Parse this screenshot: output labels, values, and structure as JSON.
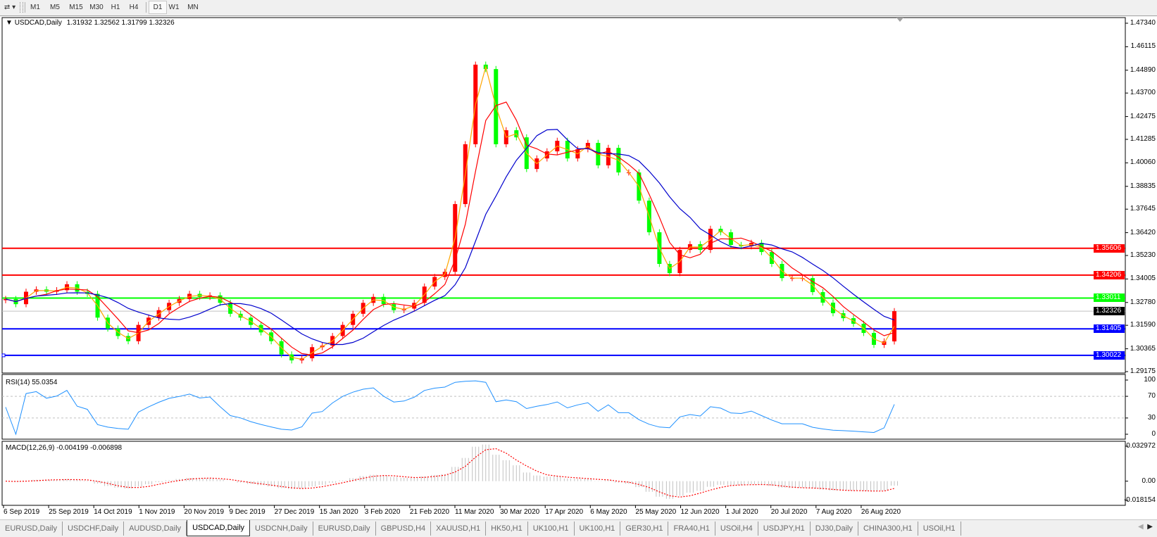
{
  "toolbar": {
    "timeframes": [
      "M1",
      "M5",
      "M15",
      "M30",
      "H1",
      "H4",
      "D1",
      "W1",
      "MN"
    ],
    "active_timeframe": "D1"
  },
  "header": {
    "symbol": "USDCAD,Daily",
    "ohlc": "1.31932 1.32562 1.31799 1.32326"
  },
  "colors": {
    "bull_candle": "#ff0000",
    "bear_candle": "#00ff00",
    "ma_fast": "#ffa500",
    "ma_mid": "#ff0000",
    "ma_slow": "#0000cd",
    "rsi_line": "#1e90ff",
    "macd_hist": "#c0c0c0",
    "macd_signal": "#ff0000"
  },
  "chart_data": [
    {
      "type": "candlestick",
      "title": "USDCAD,Daily",
      "price_ticks": [
        "1.47340",
        "1.46115",
        "1.44890",
        "1.43700",
        "1.42475",
        "1.41285",
        "1.40060",
        "1.38835",
        "1.37645",
        "1.36420",
        "1.35230",
        "1.34005",
        "1.32780",
        "1.31590",
        "1.30365",
        "1.29175"
      ],
      "ylim": [
        1.29175,
        1.4734
      ],
      "time_ticks": [
        "6 Sep 2019",
        "25 Sep 2019",
        "14 Oct 2019",
        "1 Nov 2019",
        "20 Nov 2019",
        "9 Dec 2019",
        "27 Dec 2019",
        "15 Jan 2020",
        "3 Feb 2020",
        "21 Feb 2020",
        "11 Mar 2020",
        "30 Mar 2020",
        "17 Apr 2020",
        "6 May 2020",
        "25 May 2020",
        "12 Jun 2020",
        "1 Jul 2020",
        "20 Jul 2020",
        "7 Aug 2020",
        "26 Aug 2020"
      ],
      "closes": [
        1.3296,
        1.3269,
        1.3334,
        1.3346,
        1.3334,
        1.3342,
        1.3373,
        1.3334,
        1.3323,
        1.3199,
        1.3142,
        1.3103,
        1.3076,
        1.3161,
        1.3199,
        1.3238,
        1.3276,
        1.3296,
        1.3323,
        1.3307,
        1.3315,
        1.3276,
        1.3219,
        1.3199,
        1.3161,
        1.3122,
        1.3076,
        1.3007,
        1.2976,
        1.2987,
        1.3045,
        1.3053,
        1.3103,
        1.3161,
        1.3219,
        1.3276,
        1.3307,
        1.3269,
        1.3238,
        1.3246,
        1.3276,
        1.3361,
        1.3411,
        1.3438,
        1.3791,
        1.4103,
        1.4518,
        1.4495,
        1.4103,
        1.4176,
        1.4139,
        1.3974,
        1.4029,
        1.4066,
        1.4121,
        1.4029,
        1.4077,
        1.411,
        1.3993,
        1.4084,
        1.3956,
        1.3956,
        1.3809,
        1.3644,
        1.3479,
        1.3431,
        1.3552,
        1.3582,
        1.3552,
        1.3662,
        1.3644,
        1.3578,
        1.3571,
        1.3589,
        1.3541,
        1.3479,
        1.3405,
        1.3405,
        1.3405,
        1.3332,
        1.3277,
        1.3222,
        1.3196,
        1.3167,
        1.3119,
        1.3057,
        1.3075,
        1.32326
      ],
      "horizontal_lines": [
        {
          "price": "1.35606",
          "color": "#ff0000"
        },
        {
          "price": "1.34206",
          "color": "#ff0000"
        },
        {
          "price": "1.33011",
          "color": "#00ff00"
        },
        {
          "price": "1.32326",
          "color": "#000000"
        },
        {
          "price": "1.31405",
          "color": "#0000ff"
        },
        {
          "price": "1.30022",
          "color": "#0000ff"
        }
      ],
      "grid": false
    },
    {
      "type": "line",
      "title": "RSI(14) 55.0354",
      "ticks": [
        "100",
        "70",
        "30",
        "0"
      ],
      "ylim": [
        0,
        100
      ],
      "levels": [
        70,
        30
      ],
      "last_value": 55.0354
    },
    {
      "type": "bar+line",
      "title": "MACD(12,26,9) -0.004199 -0.006898",
      "ticks": [
        "0.032972",
        "0.00",
        "-0.018154"
      ],
      "ylim": [
        -0.018154,
        0.032972
      ],
      "last_macd": -0.004199,
      "last_signal": -0.006898
    }
  ],
  "tabs": [
    "EURUSD,Daily",
    "USDCHF,Daily",
    "AUDUSD,Daily",
    "USDCAD,Daily",
    "USDCNH,Daily",
    "EURUSD,Daily",
    "GBPUSD,H4",
    "XAUUSD,H1",
    "HK50,H1",
    "UK100,H1",
    "UK100,H1",
    "GER30,H1",
    "FRA40,H1",
    "USOil,H4",
    "USDJPY,H1",
    "DJ30,Daily",
    "CHINA300,H1",
    "USOil,H1"
  ],
  "active_tab": 3
}
